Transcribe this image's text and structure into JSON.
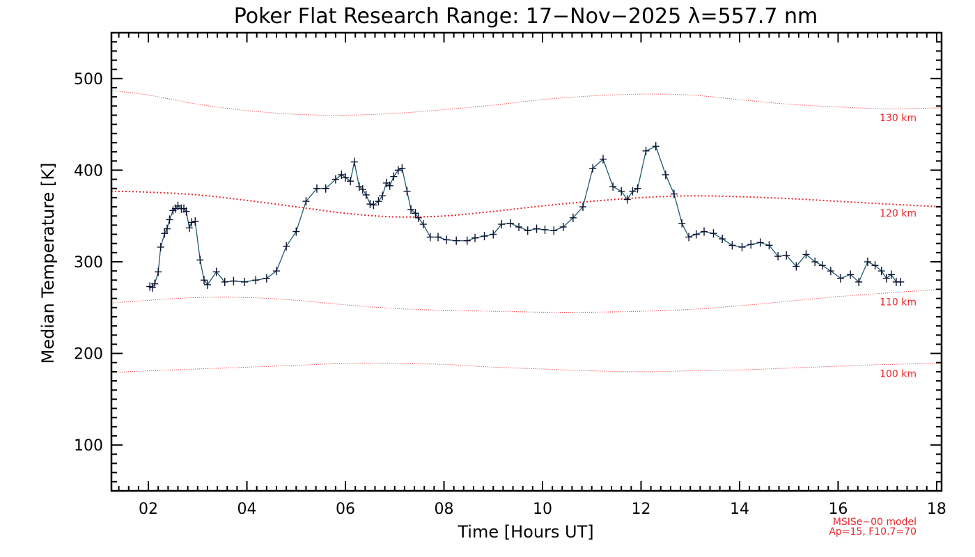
{
  "chart_data": {
    "type": "line",
    "title": "Poker Flat Research Range: 17−Nov−2025 λ=557.7 nm",
    "xlabel": "Time [Hours UT]",
    "ylabel": "Median Temperature [K]",
    "xlim": [
      1.25,
      18.1
    ],
    "ylim": [
      50,
      550
    ],
    "x_ticks": [
      2,
      4,
      6,
      8,
      10,
      12,
      14,
      16,
      18
    ],
    "x_tick_labels": [
      "02",
      "04",
      "06",
      "08",
      "10",
      "12",
      "14",
      "16",
      "18"
    ],
    "y_ticks": [
      100,
      200,
      300,
      400,
      500
    ],
    "y_tick_labels": [
      "100",
      "200",
      "300",
      "400",
      "500"
    ],
    "grid": false,
    "series": [
      {
        "color": "#1f5a6b",
        "marker": "plus",
        "x": [
          2.03,
          2.08,
          2.13,
          2.2,
          2.25,
          2.33,
          2.38,
          2.43,
          2.5,
          2.55,
          2.6,
          2.67,
          2.72,
          2.77,
          2.83,
          2.88,
          2.95,
          3.05,
          3.13,
          3.2,
          3.38,
          3.55,
          3.73,
          3.95,
          4.18,
          4.4,
          4.6,
          4.8,
          5.0,
          5.2,
          5.42,
          5.6,
          5.8,
          5.92,
          6.0,
          6.1,
          6.18,
          6.28,
          6.35,
          6.42,
          6.5,
          6.57,
          6.67,
          6.75,
          6.83,
          6.9,
          6.98,
          7.07,
          7.15,
          7.25,
          7.33,
          7.42,
          7.48,
          7.58,
          7.72,
          7.88,
          8.05,
          8.25,
          8.47,
          8.63,
          8.82,
          9.0,
          9.17,
          9.35,
          9.52,
          9.7,
          9.88,
          10.05,
          10.23,
          10.42,
          10.62,
          10.82,
          11.02,
          11.23,
          11.43,
          11.6,
          11.72,
          11.83,
          11.93,
          12.1,
          12.3,
          12.5,
          12.67,
          12.83,
          12.97,
          13.12,
          13.28,
          13.47,
          13.65,
          13.85,
          14.05,
          14.23,
          14.42,
          14.6,
          14.78,
          14.95,
          15.15,
          15.35,
          15.53,
          15.68,
          15.85,
          16.05,
          16.25,
          16.42,
          16.6,
          16.75,
          16.88,
          16.98,
          17.08,
          17.18,
          17.27
        ],
        "y": [
          273,
          272,
          276,
          289,
          316,
          331,
          336,
          346,
          356,
          358,
          361,
          358,
          358,
          355,
          337,
          343,
          344,
          302,
          280,
          275,
          289,
          278,
          279,
          278,
          280,
          282,
          290,
          317,
          333,
          366,
          380,
          380,
          390,
          395,
          392,
          388,
          409,
          382,
          379,
          373,
          363,
          362,
          366,
          372,
          386,
          383,
          393,
          400,
          402,
          377,
          357,
          353,
          348,
          341,
          327,
          327,
          324,
          323,
          323,
          326,
          328,
          330,
          341,
          342,
          338,
          334,
          336,
          335,
          334,
          338,
          348,
          360,
          402,
          412,
          382,
          377,
          368,
          377,
          380,
          421,
          426,
          395,
          374,
          342,
          327,
          330,
          333,
          331,
          325,
          318,
          316,
          319,
          321,
          318,
          306,
          307,
          295,
          308,
          300,
          296,
          290,
          282,
          286,
          278,
          300,
          296,
          290,
          282,
          286,
          278,
          278
        ]
      }
    ],
    "model_curves": [
      {
        "label": "130 km",
        "color": "#e8262a",
        "x": [
          1.25,
          2,
          3,
          4,
          5,
          6,
          7,
          8,
          9,
          10,
          11,
          12,
          13,
          14,
          15,
          16,
          17,
          18.1
        ],
        "y": [
          487,
          482,
          472,
          465,
          461,
          460,
          462,
          466,
          471,
          477,
          481,
          483,
          482,
          477,
          472,
          469,
          467,
          468
        ]
      },
      {
        "label": "120 km",
        "color": "#e8262a",
        "x": [
          1.25,
          2,
          3,
          4,
          5,
          6,
          7,
          8,
          9,
          10,
          11,
          12,
          13,
          14,
          15,
          16,
          17,
          18.1
        ],
        "y": [
          377,
          376,
          373,
          367,
          360,
          353,
          349,
          350,
          355,
          361,
          366,
          370,
          372,
          371,
          369,
          366,
          363,
          360
        ]
      },
      {
        "label": "110 km",
        "color": "#e8262a",
        "x": [
          1.25,
          2,
          3,
          4,
          5,
          6,
          7,
          8,
          9,
          10,
          11,
          12,
          13,
          14,
          15,
          16,
          17,
          18.1
        ],
        "y": [
          255,
          258,
          261,
          261,
          258,
          253,
          249,
          247,
          246,
          245,
          245,
          246,
          248,
          252,
          257,
          262,
          266,
          270
        ]
      },
      {
        "label": "100 km",
        "color": "#e8262a",
        "x": [
          1.25,
          2,
          3,
          4,
          5,
          6,
          7,
          8,
          9,
          10,
          11,
          12,
          13,
          14,
          15,
          16,
          17,
          18.1
        ],
        "y": [
          179,
          181,
          183,
          185,
          187,
          189,
          189,
          188,
          185,
          183,
          181,
          180,
          181,
          182,
          184,
          186,
          188,
          189
        ]
      }
    ],
    "notes": [
      "MSISe−00 model",
      "Ap=15, F10.7=70"
    ]
  }
}
